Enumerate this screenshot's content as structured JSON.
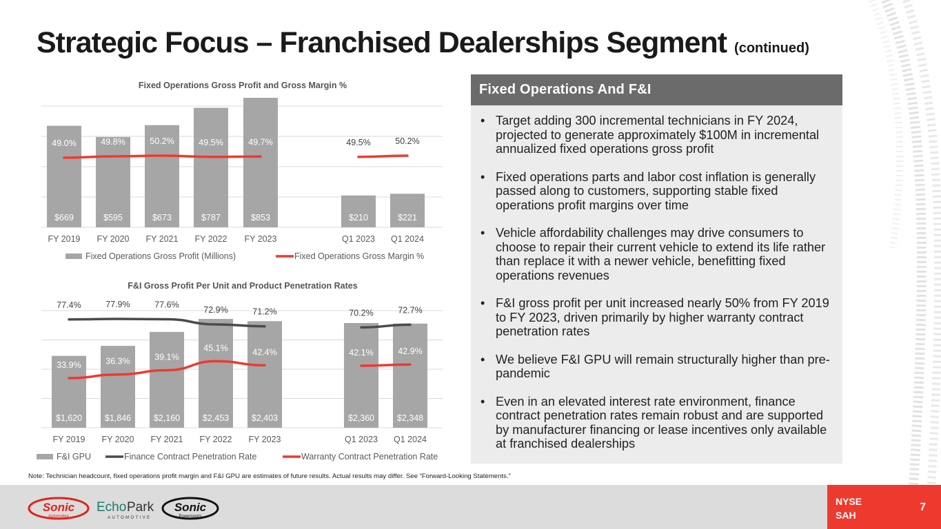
{
  "title": {
    "main": "Strategic Focus – Franchised Dealerships Segment",
    "sub": "(continued)"
  },
  "panel": {
    "heading": "Fixed Operations And F&I",
    "bullets": [
      "Target adding 300 incremental technicians in FY 2024, projected to generate approximately $100M in incremental annualized fixed operations gross profit",
      "Fixed operations parts and labor cost inflation is generally passed along to customers, supporting stable fixed operations profit margins over time",
      "Vehicle affordability challenges may drive consumers to choose to repair their current vehicle to extend its life rather than replace it with a newer vehicle, benefitting fixed operations revenues",
      "F&I gross profit per unit increased nearly 50% from FY 2019 to FY 2023, driven primarily by higher warranty contract penetration rates",
      "We believe F&I GPU will remain structurally higher than pre-pandemic",
      "Even in an elevated interest rate environment, finance contract penetration rates remain robust and are supported by manufacturer financing or lease incentives only available at franchised dealerships"
    ]
  },
  "note": "Note: Technician headcount, fixed operations profit margin and F&I GPU are estimates of future results. Actual results may differ. See “Forward-Looking Statements.”",
  "footer": {
    "exchange": "NYSE",
    "ticker": "SAH",
    "page_number": "7",
    "logos": [
      "Sonic Automotive",
      "EchoPark Automotive",
      "Sonic Powersports"
    ]
  },
  "colors": {
    "bar": "#a6a6a6",
    "red": "#ee3a2e",
    "dark_line": "#4a4a4a",
    "panel_head": "#6b6b6b",
    "panel_bg": "#ececec",
    "footer_bg": "#dcdcdc"
  },
  "chart_data": [
    {
      "type": "bar",
      "title": "Fixed Operations Gross Profit and Gross Margin %",
      "categories": [
        "FY 2019",
        "FY 2020",
        "FY 2021",
        "FY 2022",
        "FY 2023",
        "Q1 2023",
        "Q1 2024"
      ],
      "series": [
        {
          "name": "Fixed Operations Gross Profit (Millions)",
          "kind": "bar",
          "values": [
            669,
            595,
            673,
            787,
            853,
            210,
            221
          ],
          "labels": [
            "$669",
            "$595",
            "$673",
            "$787",
            "$853",
            "$210",
            "$221"
          ]
        },
        {
          "name": "Fixed Operations Gross Margin %",
          "kind": "line",
          "values": [
            49.0,
            49.8,
            50.2,
            49.5,
            49.7,
            49.5,
            50.2
          ],
          "labels": [
            "49.0%",
            "49.8%",
            "50.2%",
            "49.5%",
            "49.7%",
            "49.5%",
            "50.2%"
          ]
        }
      ],
      "legend": "bottom"
    },
    {
      "type": "bar",
      "title": "F&I Gross Profit Per Unit and Product Penetration Rates",
      "categories": [
        "FY 2019",
        "FY 2020",
        "FY 2021",
        "FY 2022",
        "FY 2023",
        "Q1 2023",
        "Q1 2024"
      ],
      "series": [
        {
          "name": "F&I GPU",
          "kind": "bar",
          "values": [
            1620,
            1846,
            2160,
            2453,
            2403,
            2360,
            2348
          ],
          "labels": [
            "$1,620",
            "$1,846",
            "$2,160",
            "$2,453",
            "$2,403",
            "$2,360",
            "$2,348"
          ]
        },
        {
          "name": "Finance Contract Penetration Rate",
          "kind": "line",
          "values": [
            77.4,
            77.9,
            77.6,
            72.9,
            71.2,
            70.2,
            72.7
          ],
          "labels": [
            "77.4%",
            "77.9%",
            "77.6%",
            "72.9%",
            "71.2%",
            "70.2%",
            "72.7%"
          ]
        },
        {
          "name": "Warranty Contract Penetration Rate",
          "kind": "line",
          "values": [
            33.9,
            36.3,
            39.1,
            45.1,
            42.4,
            42.1,
            42.9
          ],
          "labels": [
            "33.9%",
            "36.3%",
            "39.1%",
            "45.1%",
            "42.4%",
            "42.1%",
            "42.9%"
          ]
        }
      ],
      "legend": "bottom"
    }
  ]
}
